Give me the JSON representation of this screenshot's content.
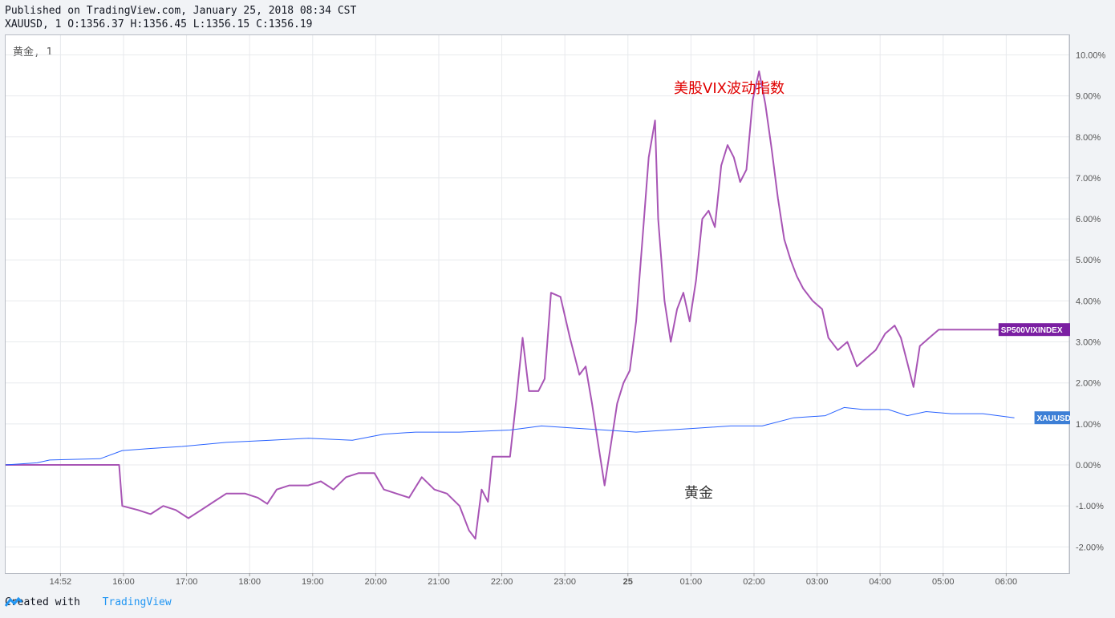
{
  "header": {
    "published": "Published on TradingView.com, January 25, 2018 08:34 CST",
    "ohlc": "XAUUSD, 1 O:1356.37 H:1356.45 L:1356.15 C:1356.19"
  },
  "legend": "黄金, 1",
  "footer": {
    "created": "Created with",
    "brand": "TradingView"
  },
  "colors": {
    "vix": "#a855b5",
    "gold": "#2962ff",
    "vix_label_bg": "#7b1fa2",
    "gold_label_bg": "#3d7fd6",
    "annotation_red": "#e00000"
  },
  "chart_data": {
    "type": "line",
    "y_unit": "%",
    "ylim": [
      -2.6,
      10.4
    ],
    "yticks": [
      10,
      9,
      8,
      7,
      6,
      5,
      4,
      3,
      2,
      1,
      0,
      -1,
      -2
    ],
    "ytick_labels": [
      "10.00%",
      "9.00%",
      "8.00%",
      "7.00%",
      "6.00%",
      "5.00%",
      "4.00%",
      "3.00%",
      "2.00%",
      "1.00%",
      "0.00%",
      "-1.00%",
      "-2.00%"
    ],
    "xlim": [
      "14:20",
      "06:55"
    ],
    "xticks": [
      "14:52",
      "16:00",
      "17:00",
      "18:00",
      "19:00",
      "20:00",
      "21:00",
      "22:00",
      "23:00",
      "25",
      "01:00",
      "02:00",
      "03:00",
      "04:00",
      "05:00",
      "06:00"
    ],
    "grid": true,
    "annotations": [
      {
        "text": "美股VIX波动指数",
        "color": "#e00000"
      },
      {
        "text": "黄金",
        "color": "#333333"
      }
    ],
    "series": [
      {
        "name": "SP500VIXINDEX",
        "values": [
          [
            0,
            0
          ],
          [
            1.8,
            0
          ],
          [
            1.85,
            -1.0
          ],
          [
            2.1,
            -1.1
          ],
          [
            2.3,
            -1.2
          ],
          [
            2.5,
            -1.0
          ],
          [
            2.7,
            -1.1
          ],
          [
            2.9,
            -1.3
          ],
          [
            3.1,
            -1.1
          ],
          [
            3.3,
            -0.9
          ],
          [
            3.5,
            -0.7
          ],
          [
            3.8,
            -0.7
          ],
          [
            4.0,
            -0.8
          ],
          [
            4.15,
            -0.95
          ],
          [
            4.3,
            -0.6
          ],
          [
            4.5,
            -0.5
          ],
          [
            4.8,
            -0.5
          ],
          [
            5.0,
            -0.4
          ],
          [
            5.2,
            -0.6
          ],
          [
            5.4,
            -0.3
          ],
          [
            5.6,
            -0.2
          ],
          [
            5.85,
            -0.2
          ],
          [
            6.0,
            -0.6
          ],
          [
            6.2,
            -0.7
          ],
          [
            6.4,
            -0.8
          ],
          [
            6.6,
            -0.3
          ],
          [
            6.8,
            -0.6
          ],
          [
            7.0,
            -0.7
          ],
          [
            7.2,
            -1.0
          ],
          [
            7.35,
            -1.6
          ],
          [
            7.45,
            -1.8
          ],
          [
            7.55,
            -0.6
          ],
          [
            7.65,
            -0.9
          ],
          [
            7.72,
            0.2
          ],
          [
            8.0,
            0.2
          ],
          [
            8.1,
            1.6
          ],
          [
            8.2,
            3.1
          ],
          [
            8.3,
            1.8
          ],
          [
            8.45,
            1.8
          ],
          [
            8.55,
            2.1
          ],
          [
            8.65,
            4.2
          ],
          [
            8.8,
            4.1
          ],
          [
            8.95,
            3.1
          ],
          [
            9.1,
            2.2
          ],
          [
            9.2,
            2.4
          ],
          [
            9.3,
            1.5
          ],
          [
            9.4,
            0.5
          ],
          [
            9.5,
            -0.5
          ],
          [
            9.6,
            0.5
          ],
          [
            9.7,
            1.5
          ],
          [
            9.8,
            2.0
          ],
          [
            9.9,
            2.3
          ],
          [
            10.0,
            3.5
          ],
          [
            10.1,
            5.5
          ],
          [
            10.2,
            7.5
          ],
          [
            10.3,
            8.4
          ],
          [
            10.35,
            6.0
          ],
          [
            10.45,
            4.0
          ],
          [
            10.55,
            3.0
          ],
          [
            10.65,
            3.8
          ],
          [
            10.75,
            4.2
          ],
          [
            10.85,
            3.5
          ],
          [
            10.95,
            4.5
          ],
          [
            11.05,
            6.0
          ],
          [
            11.15,
            6.2
          ],
          [
            11.25,
            5.8
          ],
          [
            11.35,
            7.3
          ],
          [
            11.45,
            7.8
          ],
          [
            11.55,
            7.5
          ],
          [
            11.65,
            6.9
          ],
          [
            11.75,
            7.2
          ],
          [
            11.85,
            8.9
          ],
          [
            11.95,
            9.6
          ],
          [
            12.05,
            8.8
          ],
          [
            12.15,
            7.7
          ],
          [
            12.25,
            6.5
          ],
          [
            12.35,
            5.5
          ],
          [
            12.45,
            5.0
          ],
          [
            12.55,
            4.6
          ],
          [
            12.65,
            4.3
          ],
          [
            12.8,
            4.0
          ],
          [
            12.95,
            3.8
          ],
          [
            13.05,
            3.1
          ],
          [
            13.2,
            2.8
          ],
          [
            13.35,
            3.0
          ],
          [
            13.5,
            2.4
          ],
          [
            13.65,
            2.6
          ],
          [
            13.8,
            2.8
          ],
          [
            13.95,
            3.2
          ],
          [
            14.1,
            3.4
          ],
          [
            14.2,
            3.1
          ],
          [
            14.3,
            2.5
          ],
          [
            14.4,
            1.9
          ],
          [
            14.5,
            2.9
          ],
          [
            14.65,
            3.1
          ],
          [
            14.8,
            3.3
          ],
          [
            16.0,
            3.3
          ]
        ]
      },
      {
        "name": "XAUUSD",
        "values": [
          [
            0,
            0
          ],
          [
            0.5,
            0.05
          ],
          [
            0.7,
            0.12
          ],
          [
            1.5,
            0.15
          ],
          [
            1.85,
            0.35
          ],
          [
            2.3,
            0.4
          ],
          [
            2.8,
            0.45
          ],
          [
            3.5,
            0.55
          ],
          [
            4.2,
            0.6
          ],
          [
            4.8,
            0.65
          ],
          [
            5.5,
            0.6
          ],
          [
            6.0,
            0.75
          ],
          [
            6.5,
            0.8
          ],
          [
            7.2,
            0.8
          ],
          [
            8.0,
            0.85
          ],
          [
            8.5,
            0.95
          ],
          [
            9.0,
            0.9
          ],
          [
            9.5,
            0.85
          ],
          [
            10.0,
            0.8
          ],
          [
            10.5,
            0.85
          ],
          [
            11.0,
            0.9
          ],
          [
            11.5,
            0.95
          ],
          [
            12.0,
            0.95
          ],
          [
            12.5,
            1.15
          ],
          [
            13.0,
            1.2
          ],
          [
            13.3,
            1.4
          ],
          [
            13.6,
            1.35
          ],
          [
            14.0,
            1.35
          ],
          [
            14.3,
            1.2
          ],
          [
            14.6,
            1.3
          ],
          [
            15.0,
            1.25
          ],
          [
            15.5,
            1.25
          ],
          [
            16.0,
            1.15
          ]
        ]
      }
    ],
    "price_labels": [
      {
        "series": "SP500VIXINDEX",
        "text": "SP500VIXINDEX"
      },
      {
        "series": "XAUUSD",
        "text": "XAUUSD"
      }
    ]
  }
}
